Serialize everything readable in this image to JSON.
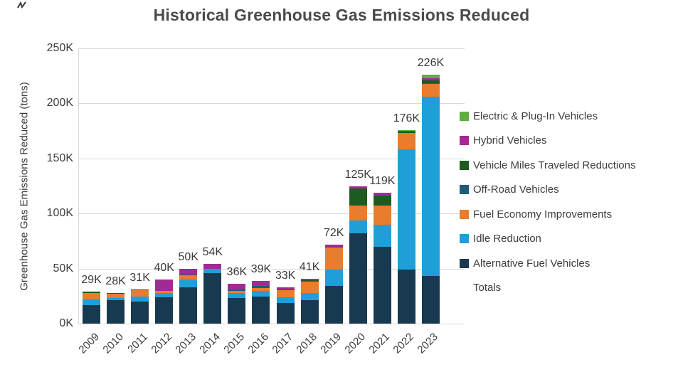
{
  "title": "Historical Greenhouse Gas Emissions Reduced",
  "y_axis": {
    "title": "Greenhouse Gas Emissions Reduced (tons)",
    "ticks": [
      "0K",
      "50K",
      "100K",
      "150K",
      "200K",
      "250K"
    ],
    "max_k": 250
  },
  "legend": {
    "items": [
      {
        "label": "Electric & Plug-In Vehicles",
        "color": "#5fae3f"
      },
      {
        "label": "Hybrid Vehicles",
        "color": "#a12b93"
      },
      {
        "label": "Vehicle Miles Traveled Reductions",
        "color": "#1e5b20"
      },
      {
        "label": "Off-Road Vehicles",
        "color": "#1f5c78"
      },
      {
        "label": "Fuel Economy Improvements",
        "color": "#e87d2e"
      },
      {
        "label": "Idle Reduction",
        "color": "#1f9fd8"
      },
      {
        "label": "Alternative Fuel Vehicles",
        "color": "#173a50"
      },
      {
        "label": "Totals",
        "color": "none"
      }
    ]
  },
  "chart_data": {
    "type": "bar",
    "stacked": true,
    "title": "Historical Greenhouse Gas Emissions Reduced",
    "xlabel": "",
    "ylabel": "Greenhouse Gas Emissions Reduced (tons)",
    "ylim_k": [
      0,
      250
    ],
    "grid": true,
    "legend_position": "right",
    "values_unit": "thousand tons",
    "categories": [
      "2009",
      "2010",
      "2011",
      "2012",
      "2013",
      "2014",
      "2015",
      "2016",
      "2017",
      "2018",
      "2019",
      "2020",
      "2021",
      "2022",
      "2023"
    ],
    "series": [
      {
        "name": "Alternative Fuel Vehicles",
        "color": "#173a50",
        "values": [
          17,
          21,
          20,
          24,
          33,
          46,
          23,
          24.5,
          18.5,
          21.5,
          34,
          82,
          70,
          49,
          43
        ]
      },
      {
        "name": "Idle Reduction",
        "color": "#1f9fd8",
        "values": [
          5,
          2,
          4.5,
          4,
          7,
          4,
          4.5,
          5.5,
          5.5,
          6.5,
          15,
          11.5,
          20,
          109,
          163
        ]
      },
      {
        "name": "Fuel Economy Improvements",
        "color": "#e87d2e",
        "values": [
          6,
          4.5,
          6,
          2,
          4,
          0,
          2,
          2,
          6.5,
          10,
          20.5,
          13.5,
          17.5,
          15,
          12
        ]
      },
      {
        "name": "Off-Road Vehicles",
        "color": "#1f5c78",
        "values": [
          0,
          0,
          0,
          0,
          0.5,
          0,
          1.5,
          2,
          0.5,
          1,
          0.5,
          0,
          0,
          0,
          0.5
        ]
      },
      {
        "name": "Vehicle Miles Traveled Reductions",
        "color": "#1e5b20",
        "values": [
          1,
          0.5,
          0.5,
          0,
          0,
          0,
          0,
          0,
          0,
          0.5,
          0,
          16,
          9,
          1.5,
          2.5
        ]
      },
      {
        "name": "Hybrid Vehicles",
        "color": "#a12b93",
        "values": [
          0,
          0,
          0,
          10,
          5.5,
          4,
          5,
          5,
          2,
          1.5,
          2,
          2,
          2.5,
          1,
          2
        ]
      },
      {
        "name": "Electric & Plug-In Vehicles",
        "color": "#5fae3f",
        "values": [
          0,
          0,
          0,
          0,
          0,
          0,
          0,
          0,
          0,
          0,
          0,
          0,
          0,
          0.5,
          3
        ]
      }
    ],
    "totals_k": [
      29,
      28,
      31,
      40,
      50,
      54,
      36,
      39,
      33,
      41,
      72,
      125,
      119,
      176,
      226
    ],
    "total_labels": [
      "29K",
      "28K",
      "31K",
      "40K",
      "50K",
      "54K",
      "36K",
      "39K",
      "33K",
      "41K",
      "72K",
      "125K",
      "119K",
      "176K",
      "226K"
    ]
  }
}
